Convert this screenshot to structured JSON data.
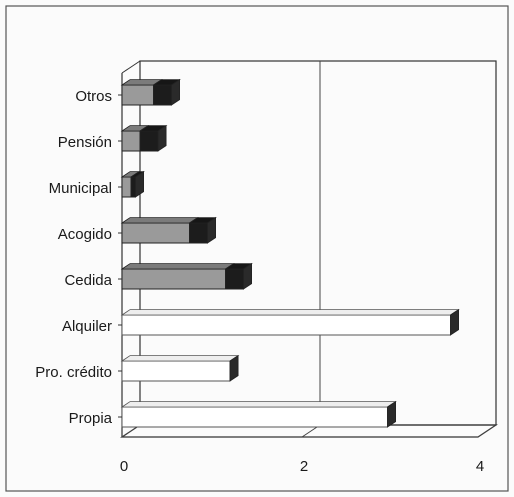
{
  "chart_data": {
    "type": "bar",
    "orientation": "horizontal",
    "style": "3d",
    "categories": [
      "Otros",
      "Pensión",
      "Municipal",
      "Acogido",
      "Cedida",
      "Alquiler",
      "Pro. crédito",
      "Propia"
    ],
    "series": [
      {
        "name": "",
        "color": "#9a9a9a",
        "values": [
          0.35,
          0.2,
          0.1,
          0.75,
          1.15,
          0.0,
          0.0,
          0.0
        ]
      },
      {
        "name": "",
        "color": "#1c1c1c",
        "values": [
          0.2,
          0.2,
          0.05,
          0.2,
          0.2,
          0.0,
          0.0,
          0.0
        ]
      },
      {
        "name": "",
        "color": "#ffffff",
        "values": [
          0.0,
          0.0,
          0.0,
          0.0,
          0.0,
          3.65,
          1.2,
          2.95
        ]
      }
    ],
    "xlim": [
      0,
      4
    ],
    "xticks": [
      "0",
      "2",
      "4"
    ],
    "grid": true,
    "legend": "none",
    "title": "",
    "xlabel": "",
    "ylabel": ""
  }
}
